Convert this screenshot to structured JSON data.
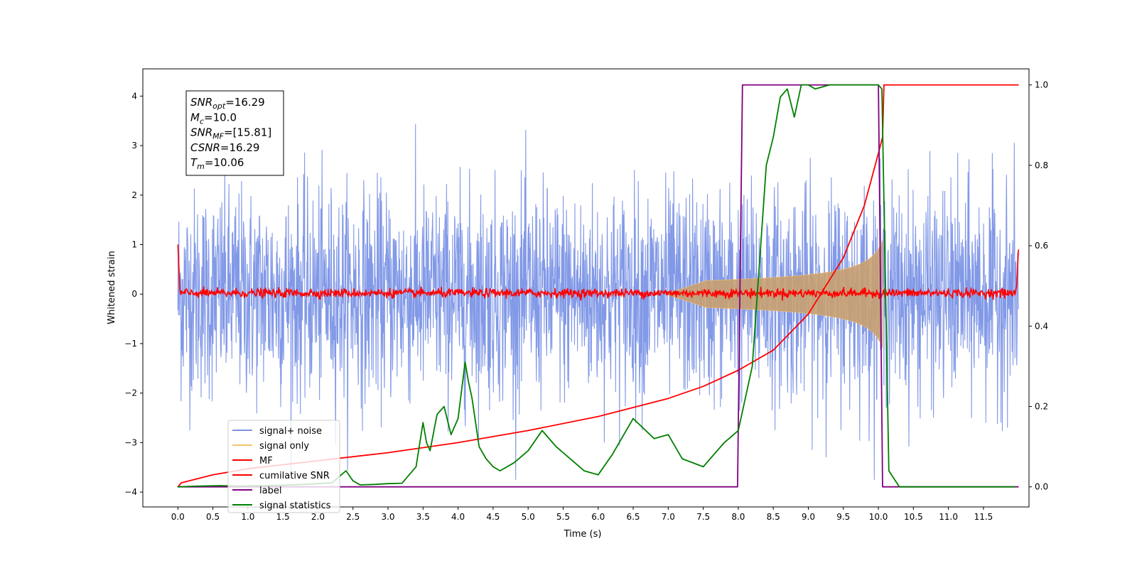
{
  "chart_data": {
    "type": "line",
    "xlabel": "Time (s)",
    "ylabel_left": "Whitened strain",
    "ylabel_right": "",
    "xlim": [
      -0.5,
      12.15
    ],
    "ylim_left": [
      -4.3,
      4.55
    ],
    "ylim_right": [
      -0.05,
      1.04
    ],
    "x_ticks": [
      0.0,
      0.5,
      1.0,
      1.5,
      2.0,
      2.5,
      3.0,
      3.5,
      4.0,
      4.5,
      5.0,
      5.5,
      6.0,
      6.5,
      7.0,
      7.5,
      8.0,
      8.5,
      9.0,
      9.5,
      10.0,
      10.5,
      11.0,
      11.5
    ],
    "x_tick_labels": [
      "0.0",
      "0.5",
      "1.0",
      "1.5",
      "2.0",
      "2.5",
      "3.0",
      "3.5",
      "4.0",
      "4.5",
      "5.0",
      "5.5",
      "6.0",
      "6.5",
      "7.0",
      "7.5",
      "8.0",
      "8.5",
      "9.0",
      "9.5",
      "10.0",
      "10.5",
      "11.0",
      "11.5"
    ],
    "y_ticks_left": [
      -4,
      -3,
      -2,
      -1,
      0,
      1,
      2,
      3,
      4
    ],
    "y_tick_labels_left": [
      "−4",
      "−3",
      "−2",
      "−1",
      "0",
      "1",
      "2",
      "3",
      "4"
    ],
    "y_ticks_right": [
      0.0,
      0.2,
      0.4,
      0.6,
      0.8,
      1.0
    ],
    "y_tick_labels_right": [
      "0.0",
      "0.2",
      "0.4",
      "0.6",
      "0.8",
      "1.0"
    ],
    "grid": false,
    "legend_placement": "lower-left",
    "info_box": {
      "lines": [
        {
          "var": "SNR",
          "sub": "opt",
          "value": "=16.29"
        },
        {
          "var": "M",
          "sub": "c",
          "value": "=10.0"
        },
        {
          "var": "SNR",
          "sub": "MF",
          "value": "=[15.81]"
        },
        {
          "var": "CSNR",
          "sub": "",
          "value": "=16.29"
        },
        {
          "var": "T",
          "sub": "m",
          "value": "=10.06"
        }
      ]
    },
    "series": [
      {
        "name": "signal+ noise",
        "axis": "left",
        "color": "#7b93e6",
        "x_range": [
          0.0,
          12.0
        ],
        "envelope_upper": 2.4,
        "envelope_lower": -2.6,
        "peak_high": 4.0,
        "peak_low": -3.75
      },
      {
        "name": "signal only",
        "axis": "left",
        "color": "#f5c26b",
        "chirp_start": 7.0,
        "chirp_peak_time": 10.06,
        "chirp_peak_amplitude": 1.1
      },
      {
        "name": "MF",
        "axis": "left",
        "color": "#ff0000",
        "x_range": [
          0.0,
          12.0
        ],
        "start_value": 1.0,
        "end_value": 0.9,
        "typical_level": 0.02
      },
      {
        "name": "cumilative SNR",
        "axis": "right",
        "color": "#ff0000",
        "x": [
          0.0,
          0.05,
          0.5,
          1.0,
          2.0,
          3.0,
          4.0,
          5.0,
          6.0,
          7.0,
          7.5,
          8.0,
          8.5,
          9.0,
          9.5,
          9.8,
          10.0,
          10.06,
          10.08,
          12.0
        ],
        "y": [
          0.0,
          0.01,
          0.03,
          0.045,
          0.065,
          0.085,
          0.11,
          0.14,
          0.175,
          0.22,
          0.25,
          0.29,
          0.34,
          0.43,
          0.57,
          0.7,
          0.83,
          0.87,
          1.0,
          1.0
        ]
      },
      {
        "name": "label",
        "axis": "right",
        "color": "#800080",
        "x": [
          0.0,
          7.99,
          8.06,
          10.0,
          10.06,
          12.0
        ],
        "y": [
          0.0,
          0.0,
          1.0,
          1.0,
          0.0,
          0.0
        ]
      },
      {
        "name": "signal statistics",
        "axis": "right",
        "color": "#008000",
        "x": [
          0.0,
          0.3,
          0.6,
          0.9,
          1.2,
          1.5,
          1.8,
          2.0,
          2.2,
          2.4,
          2.5,
          2.6,
          2.8,
          3.0,
          3.2,
          3.4,
          3.5,
          3.55,
          3.6,
          3.7,
          3.8,
          3.9,
          4.0,
          4.1,
          4.15,
          4.2,
          4.3,
          4.4,
          4.5,
          4.6,
          4.8,
          5.0,
          5.2,
          5.4,
          5.6,
          5.8,
          6.0,
          6.2,
          6.5,
          6.8,
          7.0,
          7.2,
          7.5,
          7.8,
          8.0,
          8.2,
          8.3,
          8.4,
          8.5,
          8.6,
          8.7,
          8.8,
          8.9,
          9.0,
          9.1,
          9.3,
          9.5,
          9.7,
          9.9,
          10.0,
          10.05,
          10.15,
          10.3,
          10.5,
          11.0,
          11.5,
          11.95
        ],
        "y": [
          0.0,
          0.002,
          0.003,
          0.002,
          0.003,
          0.004,
          0.006,
          0.008,
          0.01,
          0.04,
          0.015,
          0.005,
          0.006,
          0.008,
          0.009,
          0.05,
          0.16,
          0.11,
          0.09,
          0.18,
          0.2,
          0.13,
          0.17,
          0.31,
          0.26,
          0.22,
          0.1,
          0.07,
          0.05,
          0.04,
          0.06,
          0.09,
          0.14,
          0.1,
          0.07,
          0.04,
          0.03,
          0.08,
          0.17,
          0.12,
          0.13,
          0.07,
          0.05,
          0.11,
          0.14,
          0.3,
          0.55,
          0.8,
          0.87,
          0.97,
          0.99,
          0.92,
          1.0,
          1.0,
          0.99,
          1.0,
          1.0,
          1.0,
          1.0,
          1.0,
          0.99,
          0.04,
          0.0,
          0.0,
          0.0,
          0.0,
          0.0
        ]
      }
    ],
    "legend": [
      {
        "label": "signal+ noise",
        "color": "#7b93e6"
      },
      {
        "label": "signal only",
        "color": "#f5c26b"
      },
      {
        "label": "MF",
        "color": "#ff0000"
      },
      {
        "label": "cumilative SNR",
        "color": "#ff0000"
      },
      {
        "label": "label",
        "color": "#800080"
      },
      {
        "label": "signal statistics",
        "color": "#008000"
      }
    ]
  }
}
